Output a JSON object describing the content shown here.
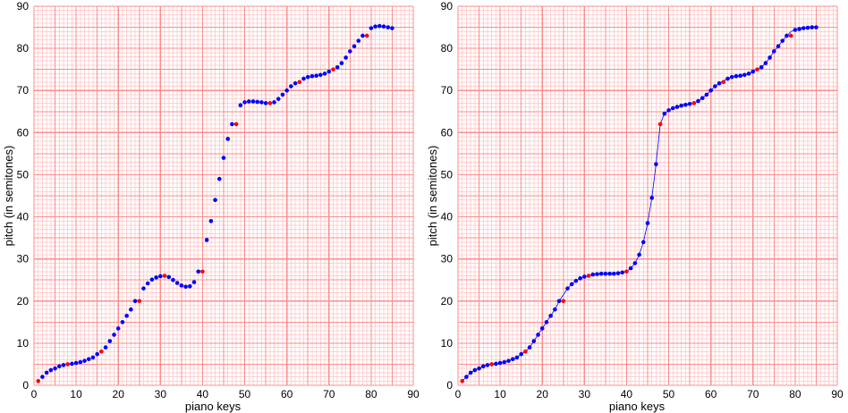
{
  "colors": {
    "grid_minor": "#ffd0d0",
    "grid_major": "#ff8c8c",
    "point_blue": "#0000ff",
    "point_red": "#ff0000",
    "line": "#0000ff"
  },
  "chart_data": [
    {
      "type": "scatter",
      "title": "",
      "xlabel": "piano keys",
      "ylabel": "pitch (in semitones)",
      "xlim": [
        0,
        90
      ],
      "ylim": [
        0,
        90
      ],
      "xticks": [
        0,
        10,
        20,
        30,
        40,
        50,
        60,
        70,
        80,
        90
      ],
      "yticks": [
        0,
        10,
        20,
        30,
        40,
        50,
        60,
        70,
        80,
        90
      ],
      "grid": true,
      "connect_line": false,
      "series": [
        {
          "color": "blue",
          "x": [
            1,
            2,
            3,
            4,
            5,
            6,
            7,
            8,
            9,
            10,
            11,
            12,
            13,
            14,
            15,
            16,
            17,
            18,
            19,
            20,
            21,
            22,
            23,
            24,
            25,
            26,
            27,
            28,
            29,
            30,
            31,
            32,
            33,
            34,
            35,
            36,
            37,
            38,
            39,
            40,
            41,
            42,
            43,
            44,
            45,
            46,
            47,
            48,
            49,
            50,
            51,
            52,
            53,
            54,
            55,
            56,
            57,
            58,
            59,
            60,
            61,
            62,
            63,
            64,
            65,
            66,
            67,
            68,
            69,
            70,
            71,
            72,
            73,
            74,
            75,
            76,
            77,
            78,
            79,
            80,
            81,
            82,
            83,
            84,
            85
          ],
          "y": [
            1,
            2,
            3,
            3.6,
            4,
            4.5,
            4.8,
            5,
            5.1,
            5.3,
            5.5,
            5.8,
            6.2,
            6.6,
            7.4,
            8,
            9,
            10.5,
            12,
            13.5,
            15,
            16.5,
            18,
            20,
            21.5,
            23,
            24.2,
            25.1,
            25.6,
            25.9,
            26,
            25.7,
            25,
            24.3,
            23.7,
            23.4,
            23.5,
            24.5,
            27,
            30.5,
            34.5,
            39,
            44,
            49,
            54,
            58.5,
            62,
            64.5,
            66.5,
            67.2,
            67.4,
            67.4,
            67.3,
            67.2,
            67,
            66.9,
            67.2,
            68,
            69,
            70,
            71,
            71.7,
            72.3,
            72.8,
            73.2,
            73.4,
            73.5,
            73.7,
            74,
            74.5,
            75,
            75.5,
            76.5,
            77.8,
            79.3,
            80.5,
            81.8,
            83,
            84.2,
            84.8,
            85.2,
            85.3,
            85.2,
            85,
            84.8
          ]
        },
        {
          "color": "red",
          "x": [
            1,
            8,
            16,
            25,
            31,
            40,
            48,
            56,
            63,
            71,
            79
          ],
          "y": [
            1,
            5,
            8,
            20,
            26,
            27,
            62,
            67,
            72,
            75,
            83
          ]
        }
      ]
    },
    {
      "type": "line",
      "title": "",
      "xlabel": "piano keys",
      "ylabel": "pitch (in semitones)",
      "xlim": [
        0,
        90
      ],
      "ylim": [
        0,
        90
      ],
      "xticks": [
        0,
        10,
        20,
        30,
        40,
        50,
        60,
        70,
        80,
        90
      ],
      "yticks": [
        0,
        10,
        20,
        30,
        40,
        50,
        60,
        70,
        80,
        90
      ],
      "grid": true,
      "connect_line": true,
      "series": [
        {
          "color": "blue",
          "x": [
            1,
            2,
            3,
            4,
            5,
            6,
            7,
            8,
            9,
            10,
            11,
            12,
            13,
            14,
            15,
            16,
            17,
            18,
            19,
            20,
            21,
            22,
            23,
            24,
            25,
            26,
            27,
            28,
            29,
            30,
            31,
            32,
            33,
            34,
            35,
            36,
            37,
            38,
            39,
            40,
            41,
            42,
            43,
            44,
            45,
            46,
            47,
            48,
            49,
            50,
            51,
            52,
            53,
            54,
            55,
            56,
            57,
            58,
            59,
            60,
            61,
            62,
            63,
            64,
            65,
            66,
            67,
            68,
            69,
            70,
            71,
            72,
            73,
            74,
            75,
            76,
            77,
            78,
            79,
            80,
            81,
            82,
            83,
            84,
            85
          ],
          "y": [
            1,
            2,
            3,
            3.6,
            4,
            4.5,
            4.8,
            5,
            5.1,
            5.3,
            5.5,
            5.8,
            6.2,
            6.6,
            7.4,
            8,
            9,
            10.5,
            12,
            13.5,
            15,
            16.5,
            18,
            20,
            21.5,
            23,
            24,
            24.8,
            25.4,
            25.8,
            26,
            26.3,
            26.4,
            26.5,
            26.5,
            26.5,
            26.5,
            26.6,
            26.8,
            27,
            27.8,
            29,
            31,
            34,
            38.5,
            44.5,
            52.5,
            62,
            64.5,
            65.3,
            65.8,
            66.1,
            66.4,
            66.6,
            66.8,
            67,
            67.5,
            68.2,
            69,
            70,
            71,
            71.7,
            72.3,
            72.8,
            73.2,
            73.4,
            73.5,
            73.7,
            74,
            74.5,
            75,
            75.5,
            76.5,
            77.8,
            79.3,
            80.5,
            81.8,
            83,
            84,
            84.4,
            84.6,
            84.8,
            84.9,
            85,
            85
          ]
        },
        {
          "color": "red",
          "x": [
            1,
            8,
            16,
            25,
            31,
            40,
            48,
            56,
            63,
            71,
            79
          ],
          "y": [
            1,
            5,
            8,
            20,
            26,
            27,
            62,
            67,
            72,
            75,
            83
          ]
        }
      ]
    }
  ]
}
